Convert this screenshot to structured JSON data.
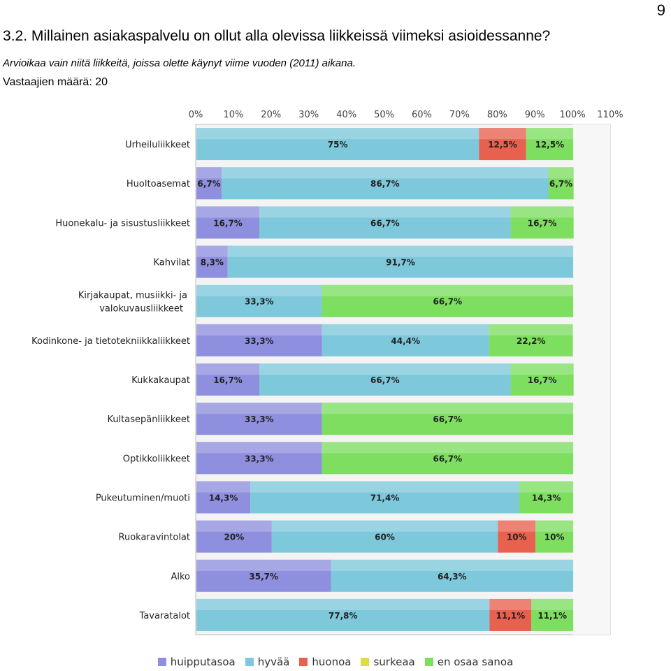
{
  "page_number": "9",
  "question": {
    "title": "3.2. Millainen asiakaspalvelu on ollut alla olevissa liikkeissä viimeksi asioidessanne?",
    "note": "Arvioikaa vain niitä liikkeitä, joissa olette käynyt viime vuoden (2011) aikana.",
    "respondents": "Vastaajien määrä: 20"
  },
  "chart_data": {
    "type": "bar",
    "orientation": "horizontal",
    "stacked": true,
    "x_ticks": [
      "0%",
      "10%",
      "20%",
      "30%",
      "40%",
      "50%",
      "60%",
      "70%",
      "80%",
      "90%",
      "100%",
      "110%"
    ],
    "xlim": [
      0,
      110
    ],
    "legend_position": "bottom",
    "categories": [
      "Urheiluliikkeet",
      "Huoltoasemat",
      "Huonekalu- ja sisustusliikkeet",
      "Kahvilat",
      "Kirjakaupat, musiikki- ja valokuvausliikkeet",
      "Kodinkone- ja tietotekniikkaliikkeet",
      "Kukkakaupat",
      "Kultasepänliikkeet",
      "Optikkoliikkeet",
      "Pukeutuminen/muoti",
      "Ruokaravintolat",
      "Alko",
      "Tavaratalot"
    ],
    "series": [
      {
        "name": "huipputasoa",
        "color": "#8f8fdf",
        "values": [
          0,
          6.7,
          16.7,
          8.3,
          0,
          33.3,
          16.7,
          33.3,
          33.3,
          14.3,
          20,
          35.7,
          0
        ],
        "labels": [
          "",
          "6,7%",
          "16,7%",
          "8,3%",
          "",
          "33,3%",
          "16,7%",
          "33,3%",
          "33,3%",
          "14,3%",
          "20%",
          "35,7%",
          ""
        ]
      },
      {
        "name": "hyvää",
        "color": "#7ec8dc",
        "values": [
          75,
          86.7,
          66.7,
          91.7,
          33.3,
          44.4,
          66.7,
          0,
          0,
          71.4,
          60,
          64.3,
          77.8
        ],
        "labels": [
          "75%",
          "86,7%",
          "66,7%",
          "91,7%",
          "33,3%",
          "44,4%",
          "66,7%",
          "",
          "",
          "71,4%",
          "60%",
          "64,3%",
          "77,8%"
        ]
      },
      {
        "name": "huonoa",
        "color": "#e8604e",
        "values": [
          12.5,
          0,
          0,
          0,
          0,
          0,
          0,
          0,
          0,
          0,
          10,
          0,
          11.1
        ],
        "labels": [
          "12,5%",
          "",
          "",
          "",
          "",
          "",
          "",
          "",
          "",
          "",
          "10%",
          "",
          "11,1%"
        ]
      },
      {
        "name": "surkeaa",
        "color": "#dede40",
        "values": [
          0,
          0,
          0,
          0,
          0,
          0,
          0,
          0,
          0,
          0,
          0,
          0,
          0
        ],
        "labels": [
          "",
          "",
          "",
          "",
          "",
          "",
          "",
          "",
          "",
          "",
          "",
          "",
          ""
        ]
      },
      {
        "name": "en osaa sanoa",
        "color": "#7ede60",
        "values": [
          12.5,
          6.7,
          16.7,
          0,
          66.7,
          22.2,
          16.7,
          66.7,
          66.7,
          14.3,
          10,
          0,
          11.1
        ],
        "labels": [
          "12,5%",
          "6,7%",
          "16,7%",
          "",
          "66,7%",
          "22,2%",
          "16,7%",
          "66,7%",
          "66,7%",
          "14,3%",
          "10%",
          "",
          "11,1%"
        ]
      }
    ]
  }
}
